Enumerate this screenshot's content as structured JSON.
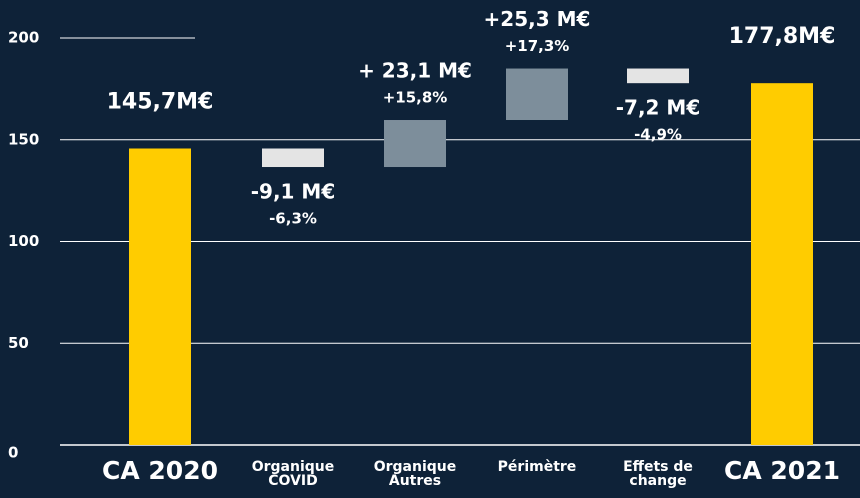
{
  "chart_data": {
    "type": "waterfall",
    "categories": [
      [
        "CA 2020"
      ],
      [
        "Organique",
        "COVID"
      ],
      [
        "Organique",
        "Autres"
      ],
      [
        "Périmètre"
      ],
      [
        "Effets de",
        "change"
      ],
      [
        "CA 2021"
      ]
    ],
    "values": [
      145.7,
      -9.1,
      23.1,
      25.3,
      -7.2,
      177.8
    ],
    "value_labels": [
      "145,7M€",
      "-9,1 M€",
      "+ 23,1 M€",
      "+25,3 M€",
      "-7,2 M€",
      "177,8M€"
    ],
    "percent_labels": [
      null,
      "-6,3%",
      "+15,8%",
      "+17,3%",
      "-4,9%",
      null
    ],
    "colors": {
      "total": "#ffcc00",
      "increase": "#7d8e9b",
      "decrease": "#e4e4e4"
    },
    "ylim": [
      0,
      200
    ],
    "yticks": [
      0,
      50,
      100,
      150,
      200
    ],
    "grid": true
  }
}
